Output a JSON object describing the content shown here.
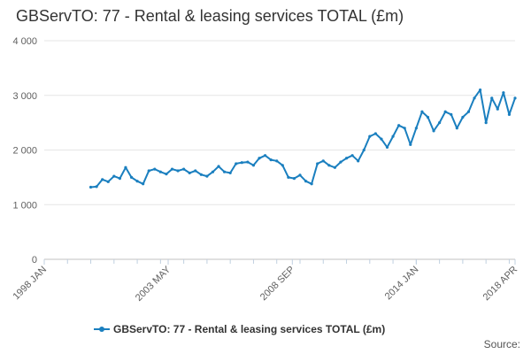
{
  "chart_data": {
    "type": "line",
    "title": "GBServTO: 77 - Rental & leasing services TOTAL (£m)",
    "xlabel": "",
    "ylabel": "",
    "ylim": [
      0,
      4000
    ],
    "yticks": [
      0,
      1000,
      2000,
      3000,
      4000
    ],
    "ytick_labels": [
      "0",
      "1 000",
      "2 000",
      "3 000",
      "4 000"
    ],
    "xlim": [
      1998.0,
      2018.25
    ],
    "xticks": [
      1998.0,
      2003.33,
      2008.67,
      2014.0,
      2018.25
    ],
    "xtick_labels": [
      "1998 JAN",
      "2003 MAY",
      "2008 SEP",
      "2014 JAN",
      "2018 APR"
    ],
    "grid": true,
    "legend_position": "bottom",
    "source_label": "Source:",
    "series": [
      {
        "name": "GBServTO: 77 - Rental & leasing services TOTAL (£m)",
        "color": "#1a7fbf",
        "x": [
          2000.0,
          2000.25,
          2000.5,
          2000.75,
          2001.0,
          2001.25,
          2001.5,
          2001.75,
          2002.0,
          2002.25,
          2002.5,
          2002.75,
          2003.0,
          2003.25,
          2003.5,
          2003.75,
          2004.0,
          2004.25,
          2004.5,
          2004.75,
          2005.0,
          2005.25,
          2005.5,
          2005.75,
          2006.0,
          2006.25,
          2006.5,
          2006.75,
          2007.0,
          2007.25,
          2007.5,
          2007.75,
          2008.0,
          2008.25,
          2008.5,
          2008.75,
          2009.0,
          2009.25,
          2009.5,
          2009.75,
          2010.0,
          2010.25,
          2010.5,
          2010.75,
          2011.0,
          2011.25,
          2011.5,
          2011.75,
          2012.0,
          2012.25,
          2012.5,
          2012.75,
          2013.0,
          2013.25,
          2013.5,
          2013.75,
          2014.0,
          2014.25,
          2014.5,
          2014.75,
          2015.0,
          2015.25,
          2015.5,
          2015.75,
          2016.0,
          2016.25,
          2016.5,
          2016.75,
          2017.0,
          2017.25,
          2017.5,
          2017.75,
          2018.0,
          2018.25
        ],
        "values": [
          1320,
          1330,
          1460,
          1420,
          1520,
          1480,
          1680,
          1500,
          1430,
          1380,
          1620,
          1650,
          1600,
          1560,
          1650,
          1620,
          1650,
          1580,
          1620,
          1550,
          1520,
          1600,
          1700,
          1600,
          1580,
          1750,
          1770,
          1780,
          1720,
          1850,
          1900,
          1820,
          1800,
          1720,
          1500,
          1480,
          1540,
          1430,
          1380,
          1750,
          1800,
          1720,
          1680,
          1780,
          1850,
          1900,
          1800,
          2000,
          2250,
          2300,
          2200,
          2050,
          2250,
          2450,
          2400,
          2100,
          2400,
          2700,
          2600,
          2350,
          2500,
          2700,
          2650,
          2400,
          2600,
          2700,
          2950,
          3100,
          2500,
          2950,
          2750,
          3050,
          2650,
          2950
        ]
      }
    ]
  }
}
